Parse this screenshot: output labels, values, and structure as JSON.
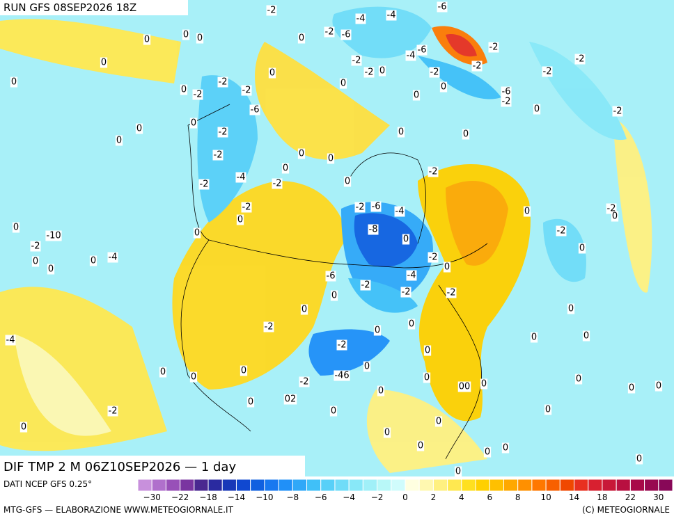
{
  "header": {
    "run": "RUN GFS 08SEP2026 18Z"
  },
  "footer": {
    "title": "DIF TMP 2 M 06Z10SEP2026 — 1 day",
    "source": "DATI NCEP GFS 0.25°",
    "credit": "MTG-GFS — ELABORAZIONE WWW.METEOGIORNALE.IT",
    "copyright": "(C) METEOGIORNALE"
  },
  "colorbar": {
    "colors": [
      "#c890dc",
      "#b070cc",
      "#9850b8",
      "#7a35a0",
      "#4a2890",
      "#2a2aa0",
      "#1838b8",
      "#1048d0",
      "#1060e0",
      "#1878f0",
      "#2090f8",
      "#30a8f8",
      "#40c0f8",
      "#58d0f8",
      "#70dcf8",
      "#88e8f8",
      "#a0f0f8",
      "#b8f8f8",
      "#d0fcfc",
      "#ffffe0",
      "#fff8b0",
      "#fff080",
      "#ffe850",
      "#ffe020",
      "#ffd000",
      "#ffc000",
      "#ffa800",
      "#ff9000",
      "#ff7800",
      "#f86000",
      "#f04800",
      "#e83020",
      "#d82030",
      "#c81838",
      "#b81040",
      "#a80848",
      "#980850",
      "#880858"
    ],
    "ticks": [
      "−30",
      "−22",
      "−18",
      "−14",
      "−10",
      "−8",
      "−6",
      "−4",
      "−2",
      "0",
      "2",
      "4",
      "6",
      "8",
      "10",
      "14",
      "18",
      "22",
      "30"
    ]
  },
  "contour_labels": [
    "-2",
    "-4",
    "-4",
    "-6",
    "0",
    "0",
    "0",
    "0",
    "-2",
    "-6",
    "-2",
    "-6",
    "-4",
    "-2",
    "-2",
    "0",
    "-2",
    "-2",
    "-2",
    "0",
    "0",
    "-2",
    "0",
    "-2",
    "0",
    "0",
    "-2",
    "-2",
    "0",
    "-6",
    "0",
    "-2",
    "-6",
    "0",
    "-2",
    "0",
    "-2",
    "0",
    "0",
    "0",
    "0",
    "-2",
    "0",
    "0",
    "0",
    "-2",
    "-4",
    "-2",
    "-2",
    "0",
    "-2",
    "-6",
    "-4",
    "-2",
    "-2",
    "0",
    "0",
    "0",
    "0",
    "-2",
    "-8",
    "0",
    "-10",
    "0",
    "-2",
    "0",
    "0",
    "0",
    "-4",
    "-2",
    "0",
    "0",
    "-6",
    "-4",
    "-2",
    "-2",
    "0",
    "-2",
    "0",
    "0",
    "0",
    "-2",
    "0",
    "0",
    "0",
    "-4",
    "-2",
    "0",
    "0",
    "0",
    "-46",
    "0",
    "-2",
    "0",
    "0",
    "0",
    "0",
    "00",
    "0",
    "0",
    "0",
    "02",
    "0",
    "0",
    "-2",
    "0",
    "0",
    "0",
    "0",
    "0",
    "0",
    "0",
    "0",
    "0"
  ]
}
